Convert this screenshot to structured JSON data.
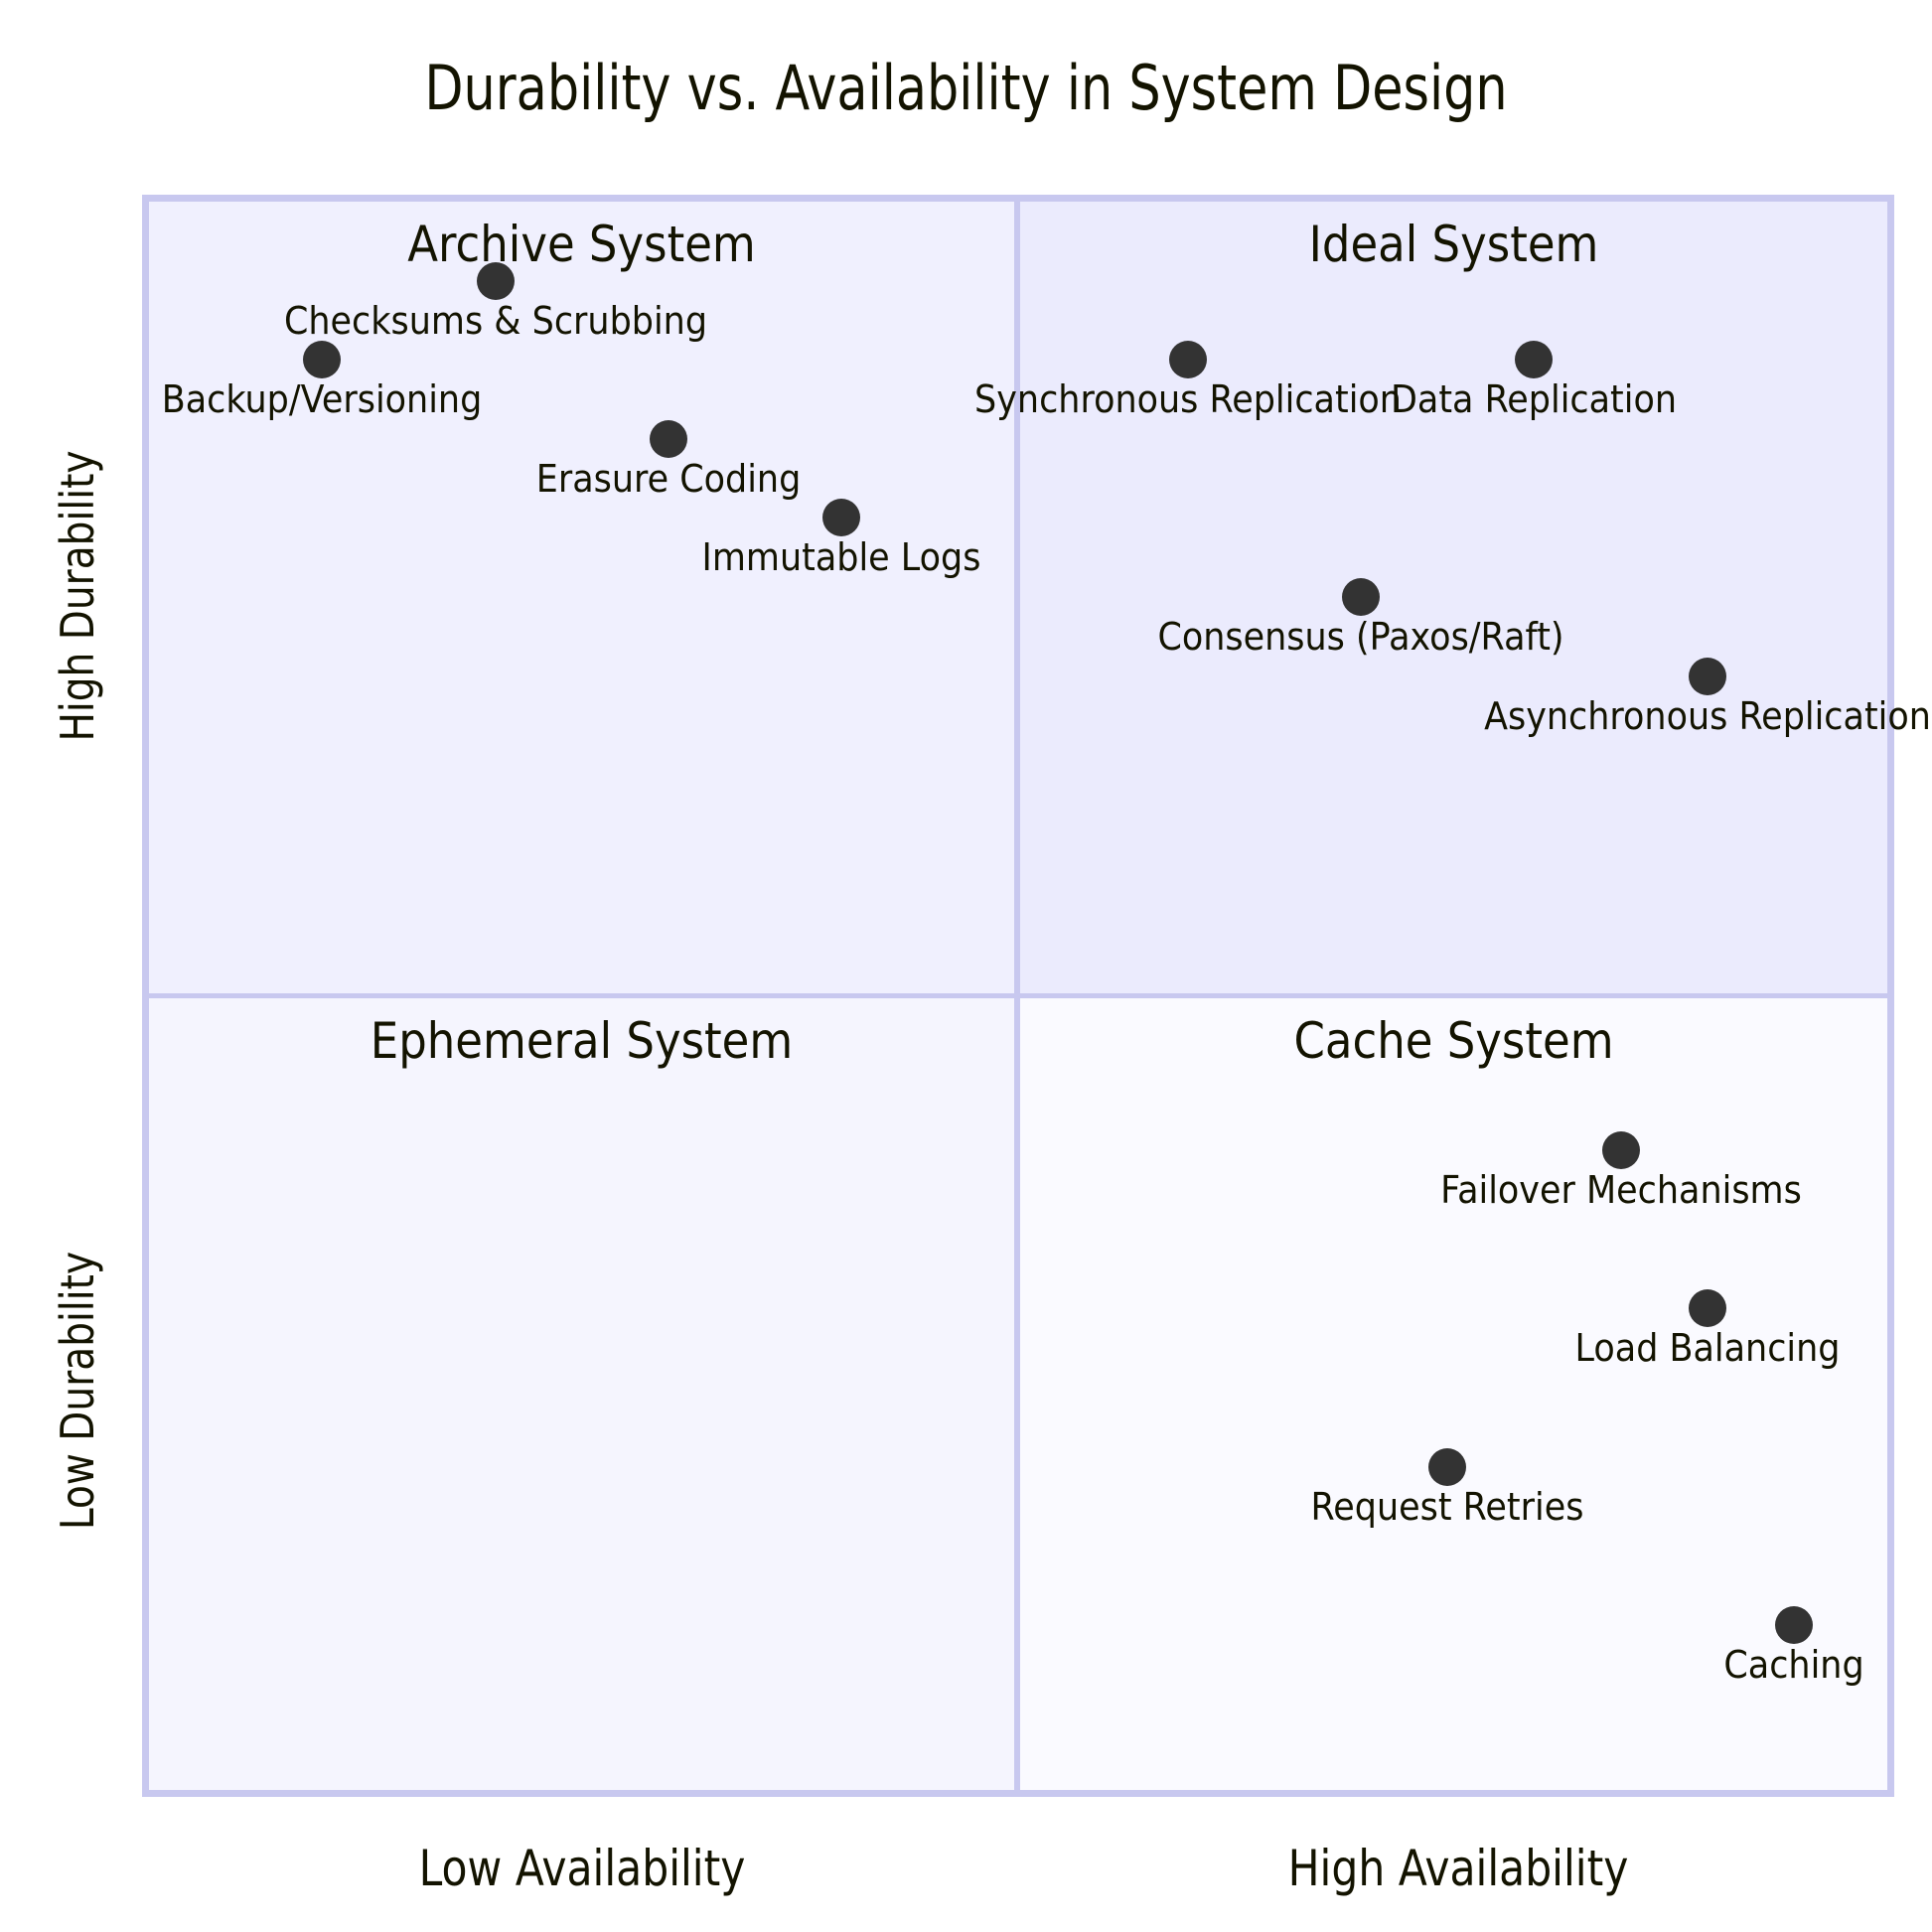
{
  "title": "Durability vs. Availability in System Design",
  "axes": {
    "x_low": "Low Availability",
    "x_high": "High Availability",
    "y_low": "Low Durability",
    "y_high": "High Durability"
  },
  "quadrants": {
    "q1": {
      "label": "Ideal System",
      "color": "#ebebfd"
    },
    "q2": {
      "label": "Archive System",
      "color": "#f0f0fe"
    },
    "q3": {
      "label": "Ephemeral System",
      "color": "#f5f5fe"
    },
    "q4": {
      "label": "Cache System",
      "color": "#fafaff"
    }
  },
  "colors": {
    "border": "#c8c8ef",
    "point": "#333333",
    "text": "#131300"
  },
  "chart_data": {
    "type": "scatter",
    "subtype": "quadrant",
    "title": "Durability vs. Availability in System Design",
    "xlabel": [
      "Low Availability",
      "High Availability"
    ],
    "ylabel": [
      "Low Durability",
      "High Durability"
    ],
    "xlim": [
      0,
      1
    ],
    "ylim": [
      0,
      1
    ],
    "quadrants": [
      "Ideal System",
      "Archive System",
      "Ephemeral System",
      "Cache System"
    ],
    "points": [
      {
        "label": "Checksums & Scrubbing",
        "x": 0.2,
        "y": 0.95
      },
      {
        "label": "Backup/Versioning",
        "x": 0.1,
        "y": 0.9
      },
      {
        "label": "Erasure Coding",
        "x": 0.3,
        "y": 0.85
      },
      {
        "label": "Immutable Logs",
        "x": 0.4,
        "y": 0.8
      },
      {
        "label": "Synchronous Replication",
        "x": 0.6,
        "y": 0.9
      },
      {
        "label": "Data Replication",
        "x": 0.8,
        "y": 0.9
      },
      {
        "label": "Consensus (Paxos/Raft)",
        "x": 0.7,
        "y": 0.75
      },
      {
        "label": "Asynchronous Replication",
        "x": 0.9,
        "y": 0.7
      },
      {
        "label": "Failover Mechanisms",
        "x": 0.85,
        "y": 0.4
      },
      {
        "label": "Load Balancing",
        "x": 0.9,
        "y": 0.3
      },
      {
        "label": "Request Retries",
        "x": 0.75,
        "y": 0.2
      },
      {
        "label": "Caching",
        "x": 0.95,
        "y": 0.1
      }
    ]
  }
}
